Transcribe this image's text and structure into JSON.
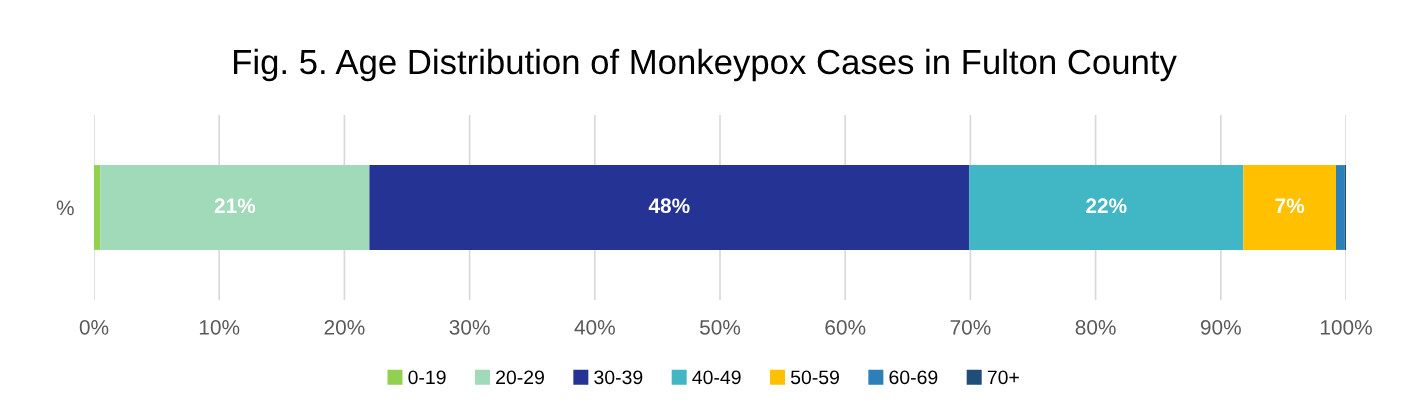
{
  "chart_data": {
    "type": "bar",
    "orientation": "horizontal",
    "stacked": true,
    "title": "Fig. 5. Age Distribution of Monkeypox Cases in Fulton County",
    "categories": [
      "%"
    ],
    "series": [
      {
        "name": "0-19",
        "color": "#92d050",
        "values": [
          0.5
        ]
      },
      {
        "name": "20-29",
        "color": "#a0dab8",
        "values": [
          21.5
        ],
        "value_labels": [
          "21%"
        ]
      },
      {
        "name": "30-39",
        "color": "#253494",
        "values": [
          47.9
        ],
        "value_labels": [
          "48%"
        ]
      },
      {
        "name": "40-49",
        "color": "#41b6c4",
        "values": [
          21.9
        ],
        "value_labels": [
          "22%"
        ]
      },
      {
        "name": "50-59",
        "color": "#ffc000",
        "values": [
          7.4
        ],
        "value_labels": [
          "7%"
        ]
      },
      {
        "name": "60-69",
        "color": "#2c7fb8",
        "values": [
          0.7
        ]
      },
      {
        "name": "70+",
        "color": "#1f4e79",
        "values": [
          0.1
        ]
      }
    ],
    "xlim": [
      0,
      100
    ],
    "xticks": [
      {
        "value": 0,
        "label": "0%"
      },
      {
        "value": 10,
        "label": "10%"
      },
      {
        "value": 20,
        "label": "20%"
      },
      {
        "value": 30,
        "label": "30%"
      },
      {
        "value": 40,
        "label": "40%"
      },
      {
        "value": 50,
        "label": "50%"
      },
      {
        "value": 60,
        "label": "60%"
      },
      {
        "value": 70,
        "label": "70%"
      },
      {
        "value": 80,
        "label": "80%"
      },
      {
        "value": 90,
        "label": "90%"
      },
      {
        "value": 100,
        "label": "100%"
      }
    ],
    "grid": "x",
    "legend": "bottom"
  }
}
